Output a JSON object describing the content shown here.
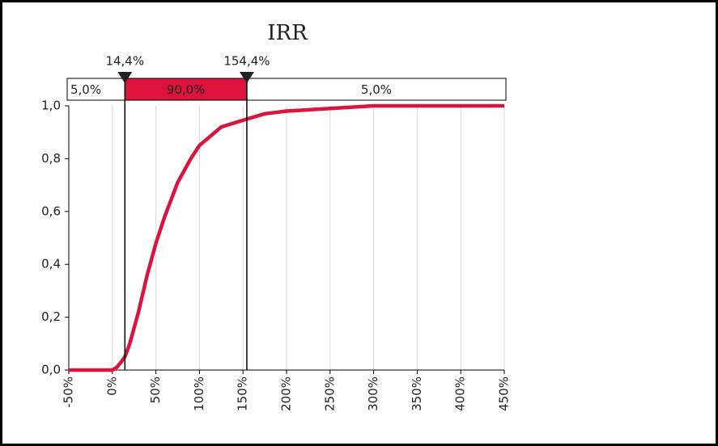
{
  "chart_data": {
    "type": "line",
    "title": "IRR",
    "x": [
      -50,
      0,
      5,
      10,
      14.4,
      20,
      30,
      40,
      50,
      60,
      75,
      90,
      100,
      125,
      154.4,
      175,
      200,
      250,
      300,
      450
    ],
    "series": [
      {
        "color": "#dc143c",
        "values": [
          0,
          0,
          0.01,
          0.03,
          0.05,
          0.1,
          0.22,
          0.36,
          0.48,
          0.58,
          0.71,
          0.8,
          0.85,
          0.92,
          0.95,
          0.97,
          0.98,
          0.99,
          1.0,
          1.0
        ]
      }
    ],
    "xlim": [
      -50,
      450
    ],
    "xticks": [
      {
        "value": -50,
        "label": "-50%"
      },
      {
        "value": 0,
        "label": "0%"
      },
      {
        "value": 50,
        "label": "50%"
      },
      {
        "value": 100,
        "label": "100%"
      },
      {
        "value": 150,
        "label": "150%"
      },
      {
        "value": 200,
        "label": "200%"
      },
      {
        "value": 250,
        "label": "250%"
      },
      {
        "value": 300,
        "label": "300%"
      },
      {
        "value": 350,
        "label": "350%"
      },
      {
        "value": 400,
        "label": "400%"
      },
      {
        "value": 450,
        "label": "450%"
      }
    ],
    "ylim": [
      0,
      1
    ],
    "yticks": [
      {
        "value": 0,
        "label": "0,0"
      },
      {
        "value": 0.2,
        "label": "0,2"
      },
      {
        "value": 0.4,
        "label": "0,4"
      },
      {
        "value": 0.6,
        "label": "0,6"
      },
      {
        "value": 0.8,
        "label": "0,8"
      },
      {
        "value": 1,
        "label": "1,0"
      }
    ],
    "grid": true,
    "delimiters": [
      {
        "value": 14.4,
        "label": "14,4%"
      },
      {
        "value": 154.4,
        "label": "154,4%"
      }
    ],
    "bar_segments": [
      {
        "value": 5,
        "label": "5,0%"
      },
      {
        "value": 90,
        "label": "90,0%"
      },
      {
        "value": 5,
        "label": "5,0%"
      }
    ]
  }
}
